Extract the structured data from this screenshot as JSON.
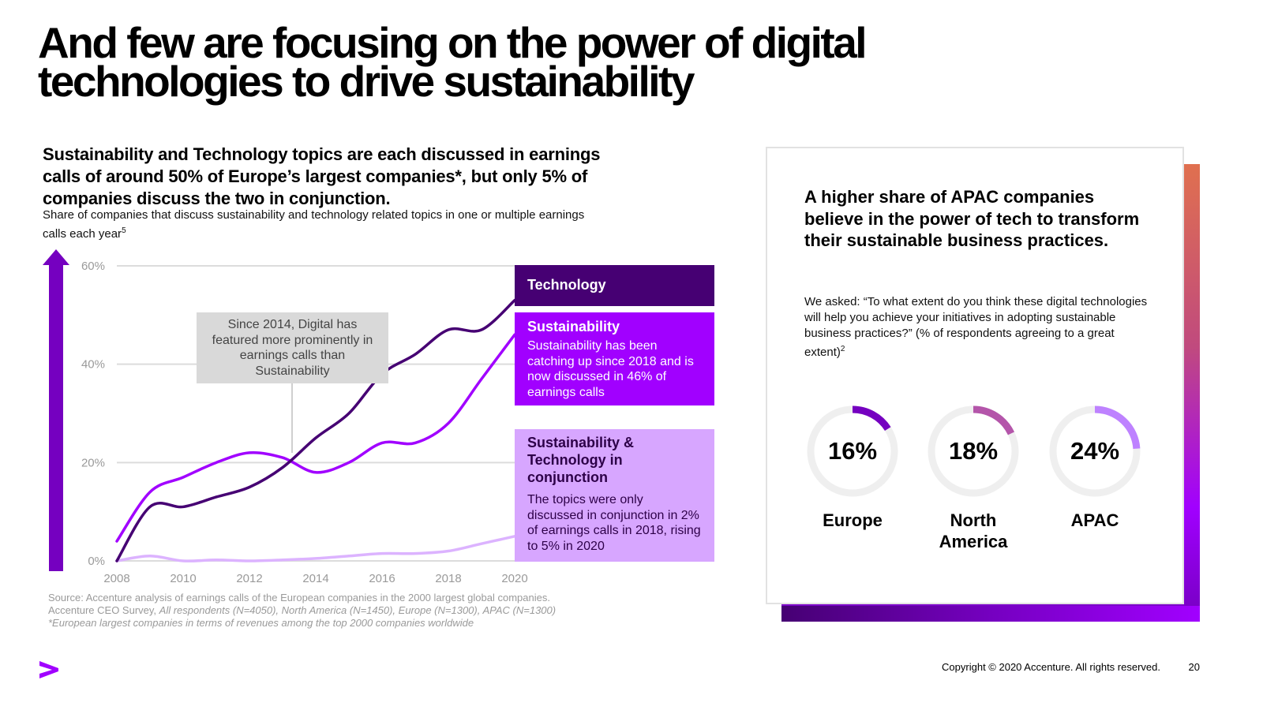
{
  "title": "And few are focusing on the power of digital technologies to drive sustainability",
  "left": {
    "headline": "Sustainability and Technology topics are each discussed in earnings calls of around 50% of Europe’s largest companies*, but only 5% of companies discuss the two in conjunction.",
    "subtitle": "Share of companies that discuss sustainability and technology related topics in one or multiple earnings calls each year",
    "subtitle_sup": "5",
    "callouts": {
      "technology_title": "Technology",
      "sustainability_title": "Sustainability",
      "sustainability_text": "Sustainability has been catching up since 2018 and is now discussed in 46% of earnings calls",
      "conjunction_title": "Sustainability & Technology in conjunction",
      "conjunction_text": "The topics were only discussed in conjunction in 2% of earnings calls in 2018, rising to 5% in 2020",
      "digital_note": "Since 2014, Digital has featured more prominently in earnings calls than Sustainability"
    },
    "source": {
      "line1": "Source: Accenture analysis of earnings calls of the European companies in the 2000 largest global companies.",
      "line2_plain": "Accenture CEO Survey, ",
      "line2_italic": "All respondents (N=4050), North America (N=1450), Europe (N=1300), APAC (N=1300)",
      "line3": "*European largest companies in terms of revenues among the top 2000 companies worldwide"
    }
  },
  "chart_data": {
    "type": "line",
    "x": [
      2008,
      2009,
      2010,
      2011,
      2012,
      2013,
      2014,
      2015,
      2016,
      2017,
      2018,
      2019,
      2020
    ],
    "x_ticks": [
      "2008",
      "2010",
      "2012",
      "2014",
      "2016",
      "2018",
      "2020"
    ],
    "y_ticks": [
      "0%",
      "20%",
      "40%",
      "60%"
    ],
    "ylim": [
      0,
      60
    ],
    "grid": true,
    "series": [
      {
        "name": "Technology",
        "color": "#460073",
        "values": [
          0,
          11,
          11,
          13,
          15,
          19,
          25,
          30,
          38,
          42,
          47,
          47,
          53
        ]
      },
      {
        "name": "Sustainability",
        "color": "#a100ff",
        "values": [
          4,
          14,
          17,
          20,
          22,
          21,
          18,
          20,
          24,
          24,
          28,
          37,
          46
        ]
      },
      {
        "name": "Sustainability & Technology in conjunction",
        "color": "#dcb3ff",
        "values": [
          0,
          1,
          0,
          0.2,
          0,
          0.2,
          0.5,
          1,
          1.5,
          1.5,
          2,
          3.5,
          5
        ]
      }
    ]
  },
  "right": {
    "heading": "A higher share of APAC companies believe in the power of tech to transform their sustainable business practices.",
    "question": "We asked: “To what extent do you think these digital technologies will help you achieve your initiatives in adopting sustainable business practices?” (% of respondents agreeing to a great extent)",
    "question_sup": "2",
    "regions": [
      {
        "label": "Europe",
        "pct_label": "16%",
        "value": 16,
        "color": "#7500c0"
      },
      {
        "label": "North America",
        "pct_label": "18%",
        "value": 18,
        "color": "#b455aa"
      },
      {
        "label": "APAC",
        "pct_label": "24%",
        "value": 24,
        "color": "#be82ff"
      }
    ]
  },
  "footer": {
    "copyright": "Copyright © 2020 Accenture. All rights reserved.",
    "page_number": "20"
  },
  "logo_icon": "accenture-greater-than-logo"
}
